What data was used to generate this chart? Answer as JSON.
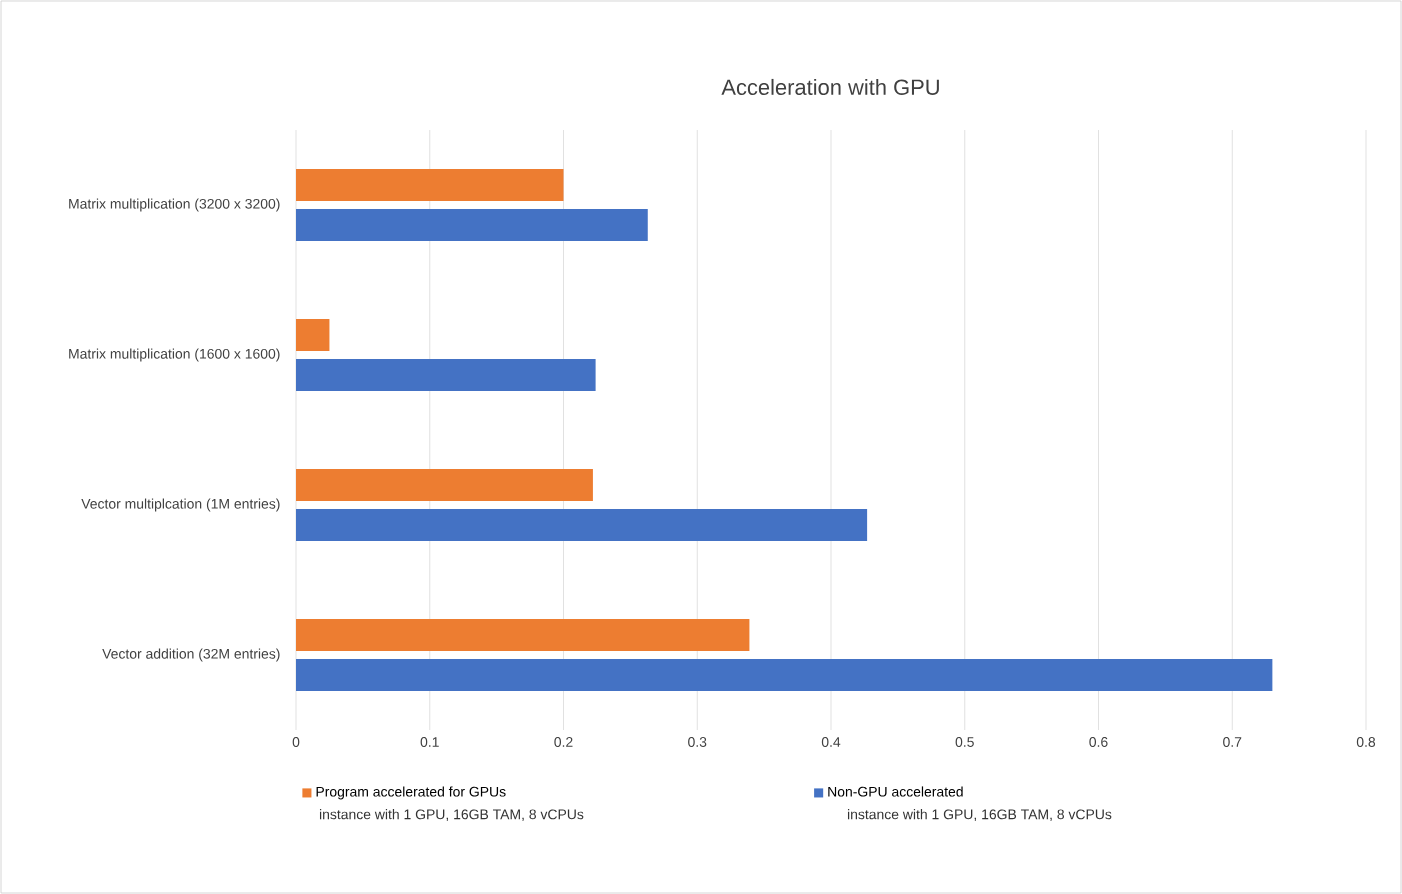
{
  "chart_data": {
    "type": "bar",
    "orientation": "horizontal",
    "title": "Acceleration with GPU",
    "categories": [
      "Matrix multiplication (3200 x 3200)",
      "Matrix multiplication (1600 x 1600)",
      "Vector multiplcation (1M entries)",
      "Vector addition (32M entries)"
    ],
    "series": [
      {
        "name": "Program accelerated for GPUs",
        "color": "#ed7d31",
        "values": [
          0.2,
          0.025,
          0.222,
          0.339
        ]
      },
      {
        "name": "Non-GPU accelerated",
        "color": "#4472c4",
        "values": [
          0.263,
          0.224,
          0.427,
          0.73
        ]
      }
    ],
    "xlim": [
      0,
      0.8
    ],
    "xticks": [
      0,
      0.1,
      0.2,
      0.3,
      0.4,
      0.5,
      0.6,
      0.7,
      0.8
    ],
    "grid": "x",
    "legend": "bottom",
    "annotations": [
      "instance with 1 GPU, 16GB TAM, 8 vCPUs",
      "instance with 1 GPU, 16GB TAM, 8 vCPUs"
    ]
  }
}
